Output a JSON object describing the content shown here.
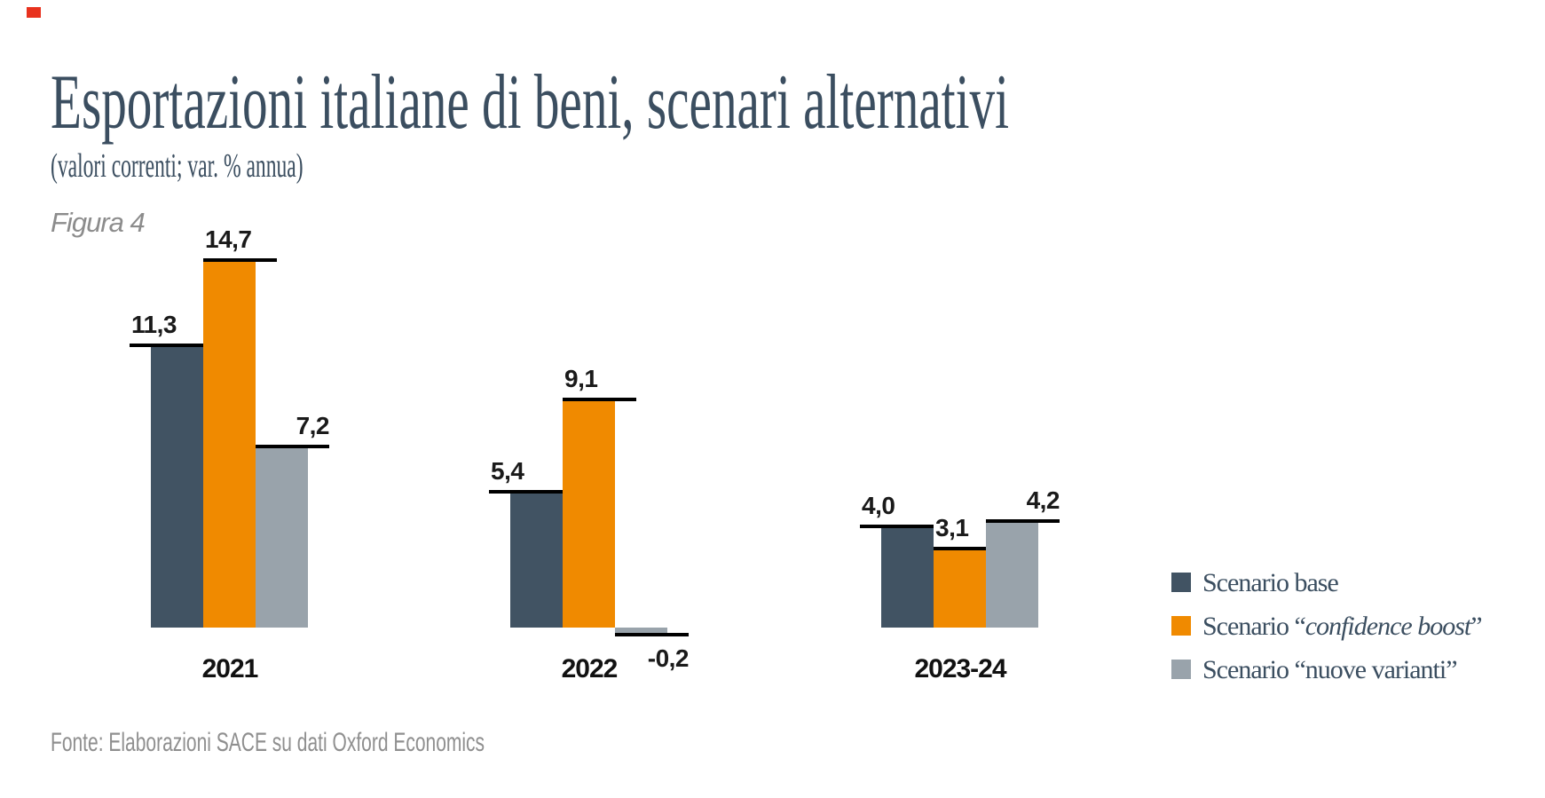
{
  "page": {
    "corner_marker_color": "#e8321e",
    "background": "#ffffff"
  },
  "header": {
    "title": "Esportazioni italiane di beni, scenari alternativi",
    "subtitle": "(valori correnti; var. % annua)",
    "figure_label": "Figura 4"
  },
  "footer": {
    "source": "Fonte: Elaborazioni SACE su dati Oxford Economics"
  },
  "colors": {
    "heading_text": "#3b4e60",
    "muted_text": "#8c8c8c",
    "value_label_text": "#1a1a1a",
    "cap_line": "#000000",
    "scenario_base": "#415363",
    "scenario_confidence_boost": "#f08a00",
    "scenario_nuove_varianti": "#99a3ab"
  },
  "chart_data": {
    "type": "bar",
    "title": "Esportazioni italiane di beni, scenari alternativi",
    "subtitle": "(valori correnti; var. % annua)",
    "figure": "Figura 4",
    "categories": [
      "2021",
      "2022",
      "2023-24"
    ],
    "series": [
      {
        "key": "scenario-base",
        "name": "Scenario base",
        "color": "#415363",
        "values": [
          11.3,
          5.4,
          4.0
        ],
        "labels": [
          "11,3",
          "5,4",
          "4,0"
        ]
      },
      {
        "key": "scenario-confidence-boost",
        "name": "Scenario “confidence boost”",
        "color": "#f08a00",
        "values": [
          14.7,
          9.1,
          3.1
        ],
        "labels": [
          "14,7",
          "9,1",
          "3,1"
        ]
      },
      {
        "key": "scenario-nuove-varianti",
        "name": "Scenario “nuove varianti”",
        "color": "#99a3ab",
        "values": [
          7.2,
          -0.2,
          4.2
        ],
        "labels": [
          "7,2",
          "-0,2",
          "4,2"
        ]
      }
    ],
    "value_format": "decimal-comma",
    "ylim": [
      -1,
      16
    ],
    "axes_visible": false,
    "grid": false,
    "legend_position": "right"
  },
  "legend": {
    "items": [
      {
        "key": "scenario-base",
        "color": "#415363",
        "pre": "Scenario base",
        "em": "",
        "post": ""
      },
      {
        "key": "scenario-confidence-boost",
        "color": "#f08a00",
        "pre": "Scenario “",
        "em": "confidence boost",
        "post": "”"
      },
      {
        "key": "scenario-nuove-varianti",
        "color": "#99a3ab",
        "pre": "Scenario “nuove varianti”",
        "em": "",
        "post": ""
      }
    ]
  }
}
